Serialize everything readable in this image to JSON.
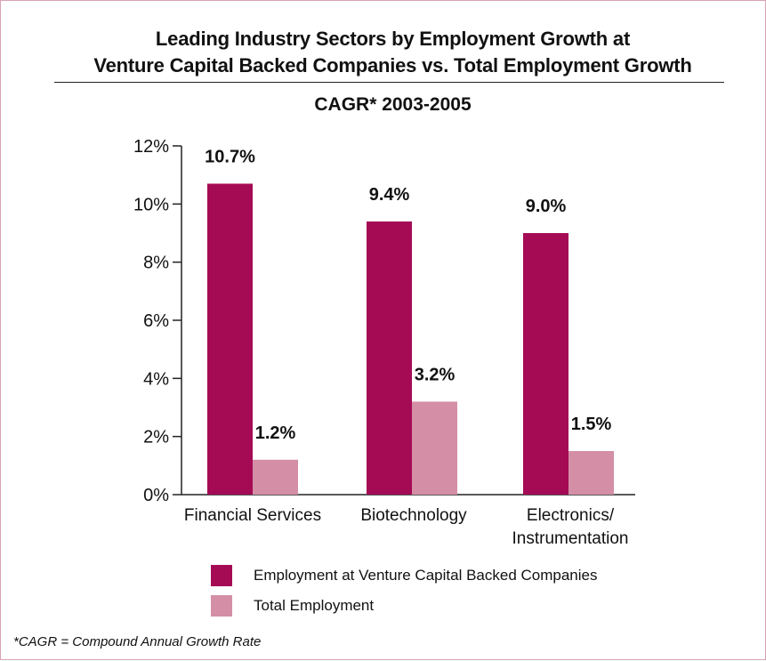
{
  "title_line1": "Leading Industry Sectors by Employment Growth at",
  "title_line2": "Venture Capital Backed Companies vs. Total Employment Growth",
  "footnote": "*CAGR = Compound Annual Growth Rate",
  "colors": {
    "series1": "#a50a55",
    "series2": "#d48ea5",
    "frame": "#d9a3b5"
  },
  "chart_data": {
    "type": "bar",
    "title": "CAGR* 2003-2005",
    "xlabel": "",
    "ylabel": "",
    "categories": [
      [
        "Financial Services"
      ],
      [
        "Biotechnology"
      ],
      [
        "Electronics/",
        "Instrumentation"
      ]
    ],
    "series": [
      {
        "name": "Employment at Venture Capital Backed Companies",
        "values": [
          10.7,
          9.4,
          9.0
        ],
        "labels": [
          "10.7%",
          "9.4%",
          "9.0%"
        ]
      },
      {
        "name": "Total Employment",
        "values": [
          1.2,
          3.2,
          1.5
        ],
        "labels": [
          "1.2%",
          "3.2%",
          "1.5%"
        ]
      }
    ],
    "ylim": [
      0,
      12
    ],
    "yticks": [
      0,
      2,
      4,
      6,
      8,
      10,
      12
    ],
    "ytick_labels": [
      "0%",
      "2%",
      "4%",
      "6%",
      "8%",
      "10%",
      "12%"
    ],
    "grid": false,
    "legend_position": "bottom"
  }
}
